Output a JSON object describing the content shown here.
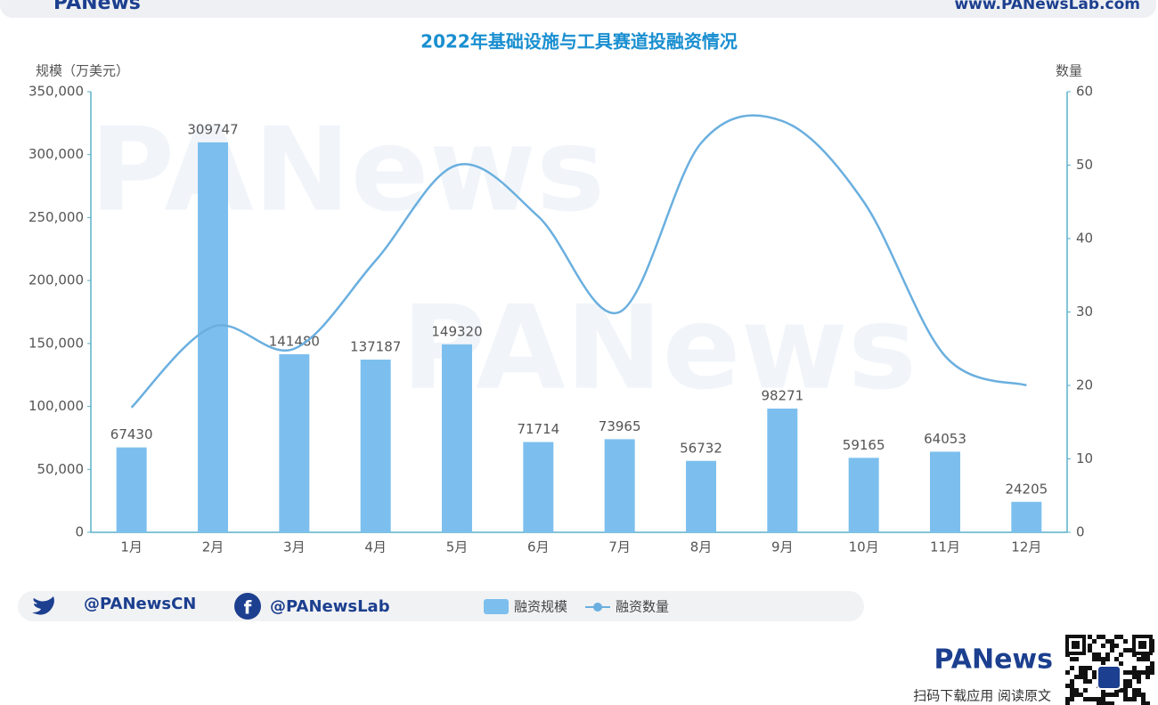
{
  "brand": {
    "logo": "PANews",
    "site": "www.PANewsLab.com",
    "twitter": "@PANewsCN",
    "facebook": "@PANewsLab",
    "qr_caption": "扫码下载应用 阅读原文",
    "watermark": "PANews"
  },
  "chart_data": {
    "type": "bar_line",
    "title": "2022年基础设施与工具赛道投融资情况",
    "y_label": "规模（万美元）",
    "y2_label": "数量",
    "categories": [
      "1月",
      "2月",
      "3月",
      "4月",
      "5月",
      "6月",
      "7月",
      "8月",
      "9月",
      "10月",
      "11月",
      "12月"
    ],
    "series": [
      {
        "name": "融资规模",
        "type": "bar",
        "color": "#7cbfee",
        "values": [
          67430,
          309747,
          141480,
          137187,
          149320,
          71714,
          73965,
          56732,
          98271,
          59165,
          64053,
          24205
        ]
      },
      {
        "name": "融资数量",
        "type": "line",
        "axis": "y2",
        "color": "#6aafdf",
        "values": [
          17,
          28,
          25,
          37,
          50,
          43,
          30,
          53,
          56,
          45,
          24,
          20
        ]
      }
    ],
    "ylim": [
      0,
      350000
    ],
    "yticks": [
      0,
      {
        "value": 50000,
        "label": "50,000"
      },
      {
        "value": 100000,
        "label": "100,000"
      },
      {
        "value": 150000,
        "label": "150,000"
      },
      {
        "value": 200000,
        "label": "200,000"
      },
      {
        "value": 250000,
        "label": "250,000"
      },
      {
        "value": 300000,
        "label": "300,000"
      },
      {
        "value": 350000,
        "label": "350,000"
      }
    ],
    "y2lim": [
      0,
      60
    ],
    "y2ticks": [
      0,
      10,
      20,
      30,
      40,
      50,
      60
    ],
    "grid": false
  }
}
